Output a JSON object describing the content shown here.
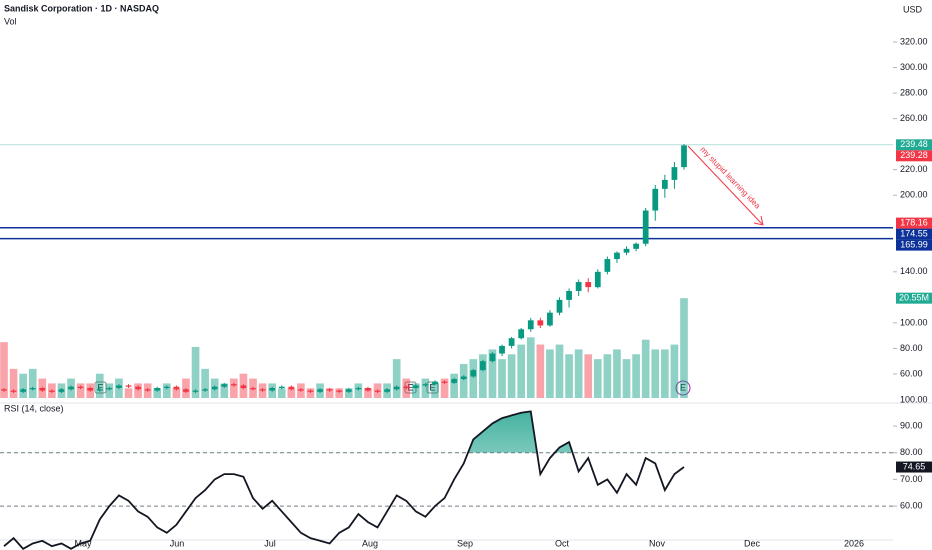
{
  "chart_data": {
    "type": "candlestick",
    "title": "Sandisk Corporation · 1D · NASDAQ",
    "volume_label": "Vol",
    "currency": "USD",
    "ylim": [
      39.6,
      352.9
    ],
    "yticks": [
      {
        "value": 60,
        "label": "60.00"
      },
      {
        "value": 80,
        "label": "80.00"
      },
      {
        "value": 100,
        "label": "100.00"
      },
      {
        "value": 140,
        "label": "140.00"
      },
      {
        "value": 200,
        "label": "200.00"
      },
      {
        "value": 220,
        "label": "220.00"
      },
      {
        "value": 260,
        "label": "260.00"
      },
      {
        "value": 280,
        "label": "280.00"
      },
      {
        "value": 300,
        "label": "300.00"
      },
      {
        "value": 320,
        "label": "320.00"
      }
    ],
    "xticks": [
      "May",
      "Jun",
      "Jul",
      "Aug",
      "Sep",
      "Oct",
      "Nov",
      "Dec",
      "2026"
    ],
    "up_color": "#089981",
    "down_color": "#f23645",
    "candles": [
      [
        48,
        49,
        46,
        47
      ],
      [
        47,
        48,
        45,
        46
      ],
      [
        46,
        49,
        45,
        48
      ],
      [
        48,
        50,
        47,
        49
      ],
      [
        49,
        50,
        46,
        47
      ],
      [
        47,
        48,
        45,
        46
      ],
      [
        46,
        49,
        45,
        48
      ],
      [
        48,
        51,
        47,
        50
      ],
      [
        50,
        51,
        48,
        49
      ],
      [
        49,
        50,
        46,
        47
      ],
      [
        47,
        49,
        46,
        48
      ],
      [
        48,
        50,
        47,
        49
      ],
      [
        49,
        52,
        48,
        51
      ],
      [
        51,
        52,
        49,
        50
      ],
      [
        50,
        51,
        47,
        48
      ],
      [
        48,
        49,
        46,
        47
      ],
      [
        47,
        50,
        46,
        49
      ],
      [
        49,
        51,
        48,
        50
      ],
      [
        50,
        51,
        47,
        48
      ],
      [
        48,
        49,
        45,
        46
      ],
      [
        46,
        48,
        45,
        47
      ],
      [
        47,
        49,
        46,
        48
      ],
      [
        48,
        51,
        47,
        50
      ],
      [
        50,
        53,
        49,
        52
      ],
      [
        52,
        53,
        50,
        51
      ],
      [
        51,
        52,
        48,
        49
      ],
      [
        49,
        50,
        47,
        48
      ],
      [
        48,
        49,
        46,
        47
      ],
      [
        47,
        50,
        46,
        49
      ],
      [
        49,
        51,
        48,
        50
      ],
      [
        50,
        51,
        47,
        48
      ],
      [
        48,
        49,
        46,
        47
      ],
      [
        47,
        48,
        45,
        46
      ],
      [
        46,
        49,
        45,
        48
      ],
      [
        48,
        49,
        46,
        47
      ],
      [
        47,
        48,
        45,
        46
      ],
      [
        46,
        49,
        45,
        48
      ],
      [
        48,
        50,
        47,
        49
      ],
      [
        49,
        50,
        46,
        47
      ],
      [
        47,
        48,
        45,
        46
      ],
      [
        46,
        49,
        45,
        48
      ],
      [
        48,
        51,
        47,
        50
      ],
      [
        50,
        51,
        48,
        49
      ],
      [
        49,
        52,
        48,
        51
      ],
      [
        51,
        53,
        50,
        52
      ],
      [
        52,
        55,
        51,
        54
      ],
      [
        54,
        55,
        52,
        53
      ],
      [
        53,
        57,
        52,
        56
      ],
      [
        56,
        59,
        55,
        58
      ],
      [
        58,
        64,
        57,
        63
      ],
      [
        63,
        71,
        62,
        70
      ],
      [
        70,
        77,
        69,
        76
      ],
      [
        76,
        83,
        74,
        82
      ],
      [
        82,
        89,
        80,
        88
      ],
      [
        88,
        96,
        87,
        95
      ],
      [
        95,
        104,
        93,
        102
      ],
      [
        102,
        104,
        96,
        98
      ],
      [
        98,
        110,
        97,
        108
      ],
      [
        108,
        120,
        106,
        118
      ],
      [
        118,
        127,
        112,
        125
      ],
      [
        125,
        134,
        121,
        132
      ],
      [
        132,
        135,
        124,
        128
      ],
      [
        128,
        142,
        127,
        140
      ],
      [
        140,
        152,
        138,
        150
      ],
      [
        150,
        156,
        147,
        155
      ],
      [
        155,
        160,
        153,
        158
      ],
      [
        158,
        163,
        156,
        162
      ],
      [
        162,
        190,
        160,
        188
      ],
      [
        188,
        208,
        180,
        205
      ],
      [
        205,
        216,
        198,
        212
      ],
      [
        212,
        226,
        205,
        222
      ],
      [
        222,
        240,
        220,
        239
      ]
    ],
    "volumes": [
      11.5,
      6,
      5,
      6,
      4,
      3,
      3,
      4,
      3,
      3,
      5,
      3,
      4,
      2,
      3,
      3,
      2,
      3,
      2,
      4,
      10.5,
      6,
      4,
      3,
      4,
      5,
      4,
      3,
      3,
      2,
      2,
      3,
      2,
      3,
      2,
      2,
      2,
      3,
      2,
      3,
      3,
      8,
      4,
      3,
      4,
      3,
      4,
      5,
      7,
      8,
      9,
      10,
      8,
      9,
      11,
      12.5,
      11,
      10,
      11,
      9,
      10,
      9,
      8,
      9,
      10,
      8,
      9,
      12,
      10,
      10,
      11,
      20.55
    ],
    "volume_lim": [
      0,
      21
    ],
    "volume_tag": {
      "value": 20.55,
      "label": "20.55M",
      "color": "#22ab94"
    },
    "price_tags": [
      {
        "value": 239.48,
        "color": "#22ab94"
      },
      {
        "value": 239.28,
        "color": "#f23645"
      },
      {
        "value": 178.16,
        "color": "#f23645"
      },
      {
        "value": 174.55,
        "color": "#0c3299"
      },
      {
        "value": 165.99,
        "color": "#0c3299"
      }
    ],
    "last_price_line_color": "#b2dfdb",
    "hlines": [
      {
        "value": 174.55,
        "color": "#0c3299"
      },
      {
        "value": 165.99,
        "color": "#0c3299"
      }
    ],
    "annotation": "my stupid learning idea",
    "earnings_label": "E",
    "rsi": {
      "title": "RSI (14, close)",
      "color": "#131722",
      "top_label": "100.00",
      "ylim": [
        47.3,
        96.4
      ],
      "yticks": [
        {
          "value": 60,
          "label": "60.00"
        },
        {
          "value": 70,
          "label": "70.00"
        },
        {
          "value": 80,
          "label": "80.00"
        },
        {
          "value": 90,
          "label": "90.00"
        }
      ],
      "levels": [
        80,
        60
      ],
      "tag": 74.65,
      "values": [
        45,
        48,
        44,
        46,
        47,
        45,
        46,
        44,
        46,
        47,
        55,
        60,
        64,
        62,
        58,
        56,
        52,
        50,
        53,
        58,
        63,
        66,
        70,
        72,
        72,
        71,
        63,
        59,
        62,
        58,
        54,
        50,
        48,
        47,
        46,
        50,
        52,
        57,
        54,
        52,
        58,
        64,
        62,
        58,
        56,
        60,
        63,
        70,
        76,
        85,
        88,
        91,
        93,
        94,
        95,
        95.5,
        72,
        78,
        82,
        84,
        73,
        78,
        68,
        70,
        65,
        72,
        68,
        78,
        76,
        66,
        72,
        74.65
      ]
    }
  }
}
